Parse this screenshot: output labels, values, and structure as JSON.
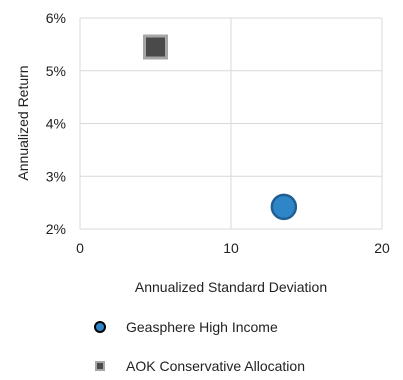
{
  "chart_data": {
    "type": "scatter",
    "title": "",
    "xlabel": "Annualized Standard Deviation",
    "ylabel": "Annualized Return",
    "xlim": [
      0,
      20
    ],
    "ylim": [
      2,
      6
    ],
    "x_ticks": [
      "0",
      "10",
      "20"
    ],
    "y_ticks": [
      "2%",
      "3%",
      "4%",
      "5%",
      "6%"
    ],
    "grid": true,
    "legend_position": "bottom",
    "series": [
      {
        "name": "Geasphere High Income",
        "marker": "circle",
        "color": "#2E86C8",
        "edge_color": "#1F5F93",
        "x": 13.5,
        "y": 2.42
      },
      {
        "name": "AOK Conservative Allocation",
        "marker": "square",
        "color": "#4a4a4a",
        "edge_color": "#a6a6a6",
        "x": 5.0,
        "y": 5.45
      }
    ]
  }
}
